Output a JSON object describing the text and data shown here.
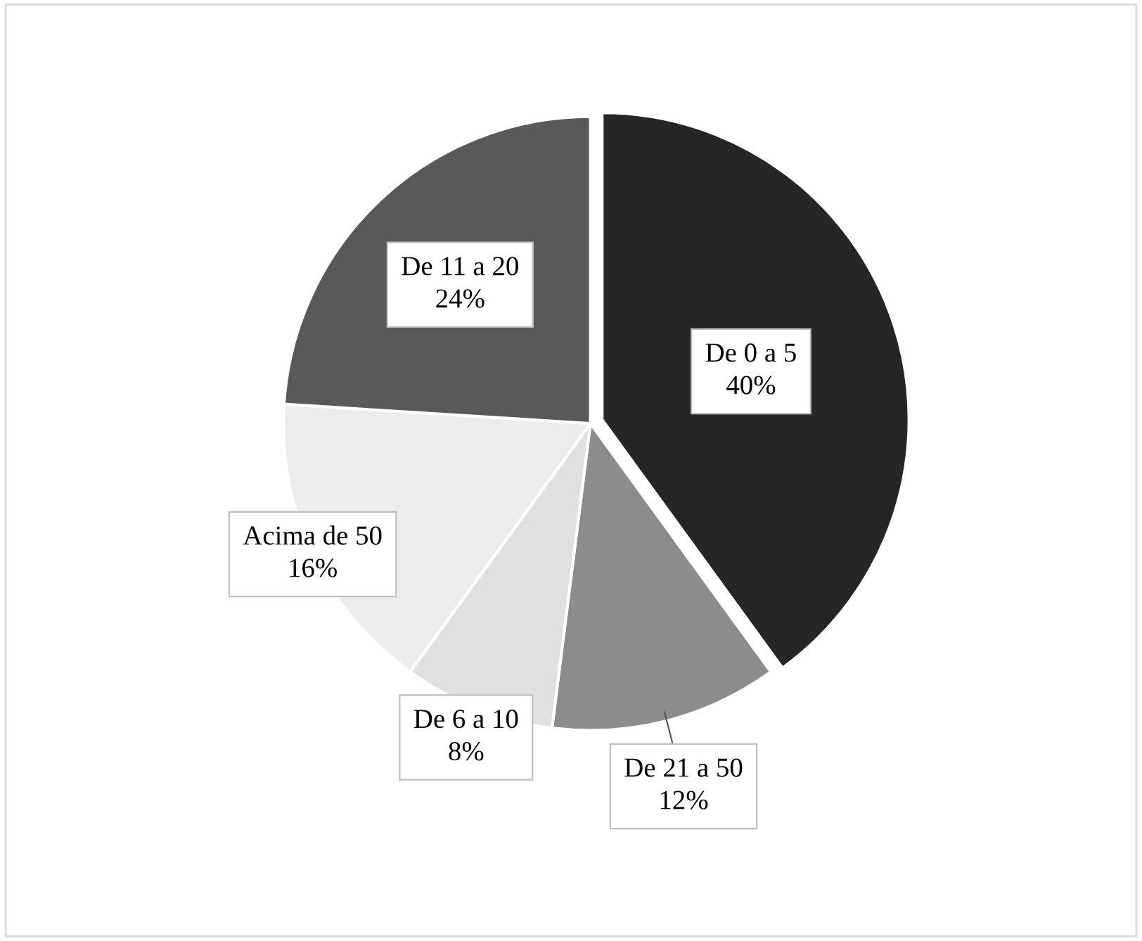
{
  "chart_data": {
    "type": "pie",
    "categories": [
      "De 0 a 5",
      "De 21 a 50",
      "De 6 a 10",
      "Acima de 50",
      "De 11 a 20"
    ],
    "values": [
      40,
      12,
      8,
      16,
      24
    ],
    "colors": [
      "#262626",
      "#8c8c8c",
      "#e0e0e0",
      "#ececec",
      "#595959"
    ],
    "value_labels": [
      "40%",
      "12%",
      "8%",
      "16%",
      "24%"
    ]
  }
}
